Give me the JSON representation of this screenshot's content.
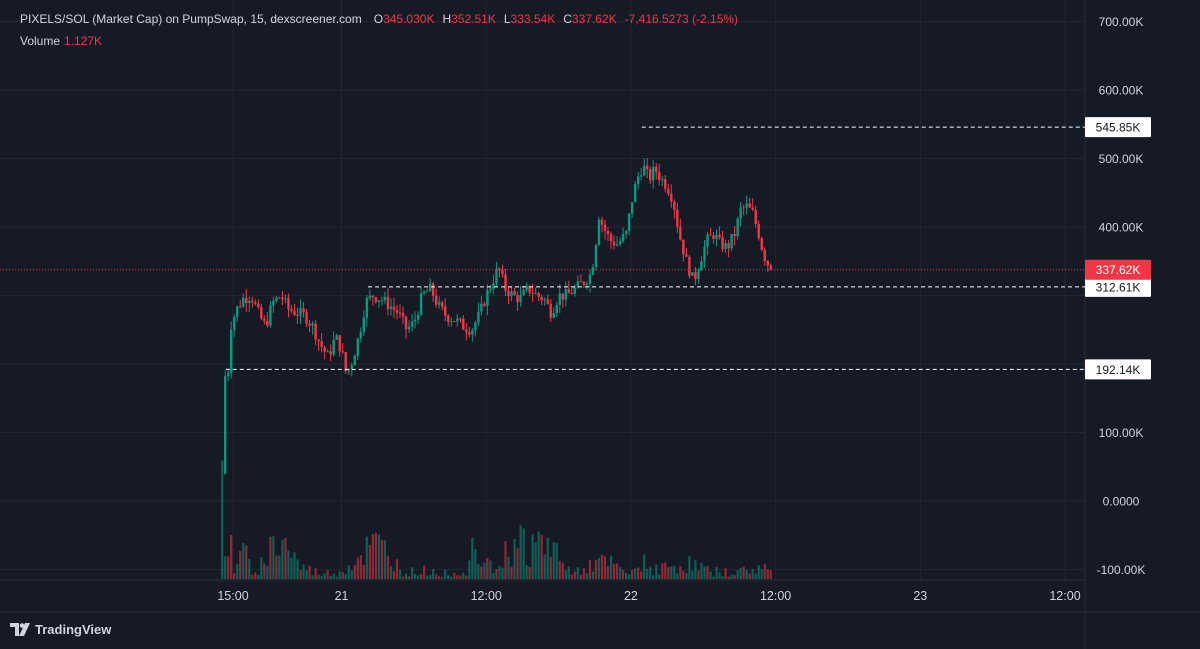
{
  "header": {
    "symbol": "PIXELS/SOL (Market Cap) on PumpSwap, 15, dexscreener.com",
    "open_label": "O",
    "open_value": "345.030K",
    "high_label": "H",
    "high_value": "352.51K",
    "low_label": "L",
    "low_value": "333.54K",
    "close_label": "C",
    "close_value": "337.62K",
    "change": "-7,416.5273 (-2.15%)",
    "volume_label": "Volume",
    "volume_value": "1.127K"
  },
  "brand": {
    "name": "TradingView"
  },
  "colors": {
    "background": "#161a25",
    "grid": "#232632",
    "up": "#089981",
    "down": "#f23645",
    "text": "#d1d4dc",
    "price_line": "#f23645",
    "level_line": "#ffffff"
  },
  "chart_data": {
    "type": "candlestick",
    "y_axis": {
      "ticks": [
        -100000,
        0,
        100000,
        400000,
        500000,
        600000,
        700000
      ],
      "tick_labels": [
        "-100.00K",
        "0.0000",
        "100.00K",
        "400.00K",
        "500.00K",
        "600.00K",
        "700.00K"
      ]
    },
    "x_axis": {
      "ticks": [
        {
          "label": "15:00",
          "hours": 0
        },
        {
          "label": "21",
          "hours": 9
        },
        {
          "label": "12:00",
          "hours": 21
        },
        {
          "label": "22",
          "hours": 33
        },
        {
          "label": "12:00",
          "hours": 45
        },
        {
          "label": "23",
          "hours": 57
        },
        {
          "label": "12:00",
          "hours": 69
        }
      ]
    },
    "horizontal_levels": [
      {
        "value": 545850,
        "label": "545.85K",
        "from_hours": 33.9
      },
      {
        "value": 312610,
        "label": "312.61K",
        "from_hours": 11.2
      },
      {
        "value": 192140,
        "label": "192.14K",
        "from_hours": -0.6
      }
    ],
    "last_price": {
      "value": 337620,
      "label": "337.62K"
    },
    "price_path": [
      [
        -0.9,
        40000
      ],
      [
        -0.7,
        190000
      ],
      [
        -0.5,
        160000
      ],
      [
        -0.2,
        255000
      ],
      [
        0.3,
        280000
      ],
      [
        0.8,
        295000
      ],
      [
        1.5,
        300000
      ],
      [
        2.2,
        270000
      ],
      [
        2.7,
        255000
      ],
      [
        3.3,
        290000
      ],
      [
        4.0,
        300000
      ],
      [
        4.6,
        280000
      ],
      [
        5.3,
        275000
      ],
      [
        6.0,
        270000
      ],
      [
        6.6,
        255000
      ],
      [
        7.2,
        230000
      ],
      [
        7.9,
        210000
      ],
      [
        8.5,
        240000
      ],
      [
        9.0,
        220000
      ],
      [
        9.4,
        185000
      ],
      [
        9.9,
        205000
      ],
      [
        10.5,
        245000
      ],
      [
        11.0,
        290000
      ],
      [
        11.6,
        300000
      ],
      [
        12.3,
        295000
      ],
      [
        13.0,
        285000
      ],
      [
        13.7,
        275000
      ],
      [
        14.4,
        250000
      ],
      [
        15.0,
        260000
      ],
      [
        15.7,
        300000
      ],
      [
        16.4,
        310000
      ],
      [
        17.0,
        285000
      ],
      [
        17.7,
        270000
      ],
      [
        18.4,
        265000
      ],
      [
        19.1,
        255000
      ],
      [
        19.8,
        250000
      ],
      [
        20.5,
        275000
      ],
      [
        21.0,
        300000
      ],
      [
        21.5,
        320000
      ],
      [
        22.0,
        340000
      ],
      [
        22.6,
        310000
      ],
      [
        23.2,
        300000
      ],
      [
        23.8,
        295000
      ],
      [
        24.5,
        310000
      ],
      [
        25.2,
        300000
      ],
      [
        25.8,
        295000
      ],
      [
        26.4,
        275000
      ],
      [
        27.0,
        300000
      ],
      [
        27.7,
        300000
      ],
      [
        28.4,
        310000
      ],
      [
        29.1,
        320000
      ],
      [
        29.6,
        330000
      ],
      [
        30.0,
        360000
      ],
      [
        30.3,
        420000
      ],
      [
        30.7,
        400000
      ],
      [
        31.3,
        380000
      ],
      [
        31.9,
        375000
      ],
      [
        32.6,
        390000
      ],
      [
        33.1,
        440000
      ],
      [
        33.5,
        470000
      ],
      [
        34.0,
        490000
      ],
      [
        34.5,
        470000
      ],
      [
        35.0,
        485000
      ],
      [
        35.5,
        470000
      ],
      [
        36.0,
        460000
      ],
      [
        36.5,
        440000
      ],
      [
        37.0,
        390000
      ],
      [
        37.6,
        350000
      ],
      [
        38.2,
        320000
      ],
      [
        38.8,
        355000
      ],
      [
        39.3,
        380000
      ],
      [
        39.9,
        390000
      ],
      [
        40.4,
        375000
      ],
      [
        41.0,
        370000
      ],
      [
        41.6,
        390000
      ],
      [
        42.1,
        425000
      ],
      [
        42.6,
        430000
      ],
      [
        43.1,
        420000
      ],
      [
        43.6,
        390000
      ],
      [
        44.0,
        360000
      ],
      [
        44.4,
        345000
      ],
      [
        44.6,
        337620
      ]
    ],
    "volume_path": [
      [
        -0.9,
        90
      ],
      [
        -0.6,
        10
      ],
      [
        -0.4,
        20
      ],
      [
        -0.2,
        80
      ],
      [
        0.0,
        5
      ],
      [
        0.5,
        35
      ],
      [
        2.0,
        10
      ],
      [
        3.5,
        45
      ],
      [
        4.5,
        42
      ],
      [
        5.5,
        15
      ],
      [
        7.0,
        8
      ],
      [
        8.5,
        6
      ],
      [
        10.0,
        20
      ],
      [
        11.0,
        35
      ],
      [
        12.0,
        40
      ],
      [
        13.0,
        30
      ],
      [
        14.0,
        8
      ],
      [
        16.0,
        10
      ],
      [
        18.0,
        6
      ],
      [
        19.5,
        10
      ],
      [
        20.0,
        50
      ],
      [
        20.5,
        55
      ],
      [
        21.0,
        30
      ],
      [
        22.0,
        15
      ],
      [
        23.0,
        40
      ],
      [
        24.0,
        45
      ],
      [
        25.5,
        40
      ],
      [
        26.5,
        45
      ],
      [
        27.5,
        10
      ],
      [
        29.0,
        15
      ],
      [
        31.0,
        20
      ],
      [
        33.0,
        5
      ],
      [
        34.2,
        25
      ],
      [
        35.0,
        12
      ],
      [
        36.5,
        15
      ],
      [
        38.0,
        18
      ],
      [
        39.5,
        10
      ],
      [
        41.0,
        8
      ],
      [
        42.5,
        10
      ],
      [
        44.0,
        15
      ],
      [
        44.6,
        8
      ]
    ]
  }
}
